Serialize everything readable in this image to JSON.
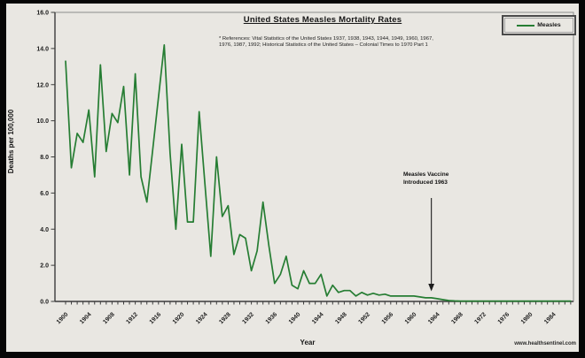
{
  "title": "United States Measles Mortality Rates",
  "references_line1": "* References: Vital Statistics of the United States 1937, 1938, 1943, 1944, 1949, 1960, 1967,",
  "references_line2": "1976, 1987, 1992; Historical Statistics of the United States – Colonial Times to 1970 Part 1",
  "legend": {
    "label": "Measles",
    "color": "#267d33",
    "position": "top-right"
  },
  "annotation": {
    "line1": "Measles Vaccine",
    "line2": "Introduced 1963",
    "arrow_year": 1963
  },
  "y_axis": {
    "title": "Deaths per 100,000",
    "min": 0,
    "max": 16,
    "tick_step": 2
  },
  "x_axis": {
    "title": "Year",
    "label_start": 1900,
    "label_end": 1984,
    "label_step": 4,
    "minor_tick_step": 1
  },
  "watermark": "www.healthsentinel.com",
  "chart_data": {
    "type": "line",
    "title": "United States Measles Mortality Rates",
    "xlabel": "Year",
    "ylabel": "Deaths per 100,000",
    "ylim": [
      0,
      16
    ],
    "xlim": [
      1900,
      1987
    ],
    "grid": false,
    "legend_position": "top-right",
    "x": [
      1900,
      1901,
      1902,
      1903,
      1904,
      1905,
      1906,
      1907,
      1908,
      1909,
      1910,
      1911,
      1912,
      1913,
      1914,
      1915,
      1916,
      1917,
      1918,
      1919,
      1920,
      1921,
      1922,
      1923,
      1924,
      1925,
      1926,
      1927,
      1928,
      1929,
      1930,
      1931,
      1932,
      1933,
      1934,
      1935,
      1936,
      1937,
      1938,
      1939,
      1940,
      1941,
      1942,
      1943,
      1944,
      1945,
      1946,
      1947,
      1948,
      1949,
      1950,
      1951,
      1952,
      1953,
      1954,
      1955,
      1956,
      1957,
      1958,
      1959,
      1960,
      1961,
      1962,
      1963,
      1964,
      1965,
      1966,
      1967,
      1968,
      1969,
      1970,
      1971,
      1972,
      1973,
      1974,
      1975,
      1976,
      1977,
      1978,
      1979,
      1980,
      1981,
      1982,
      1983,
      1984,
      1985,
      1986,
      1987
    ],
    "series": [
      {
        "name": "Measles",
        "color": "#267d33",
        "values": [
          13.3,
          7.4,
          9.3,
          8.8,
          10.6,
          6.9,
          13.1,
          8.3,
          10.4,
          9.9,
          11.9,
          7.0,
          12.6,
          6.9,
          5.5,
          8.4,
          11.3,
          14.2,
          8.2,
          4.0,
          8.7,
          4.4,
          4.4,
          10.5,
          6.5,
          2.5,
          8.0,
          4.7,
          5.3,
          2.6,
          3.7,
          3.5,
          1.7,
          2.8,
          5.5,
          3.1,
          1.0,
          1.5,
          2.5,
          0.9,
          0.7,
          1.7,
          1.0,
          1.0,
          1.5,
          0.3,
          0.9,
          0.5,
          0.6,
          0.6,
          0.3,
          0.5,
          0.35,
          0.45,
          0.35,
          0.4,
          0.3,
          0.3,
          0.3,
          0.3,
          0.3,
          0.25,
          0.2,
          0.2,
          0.15,
          0.1,
          0.05,
          0.03,
          0.02,
          0.02,
          0.02,
          0.02,
          0.02,
          0.02,
          0.02,
          0.02,
          0.02,
          0.02,
          0.02,
          0.02,
          0.02,
          0.02,
          0.02,
          0.02,
          0.02,
          0.02,
          0.02,
          0.02
        ]
      }
    ]
  }
}
